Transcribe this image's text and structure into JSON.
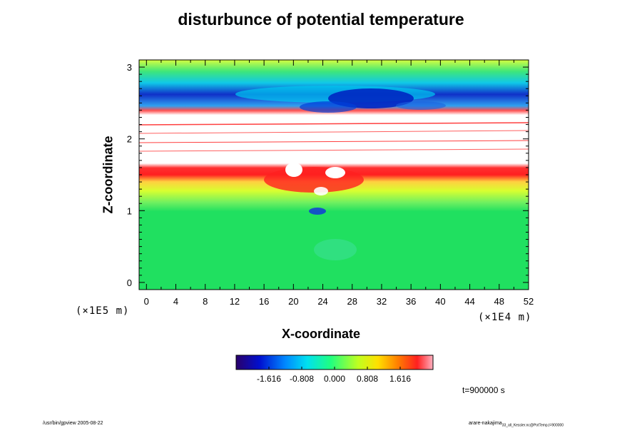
{
  "chart_data": {
    "type": "heatmap",
    "title": "disturbunce of potential temperature",
    "xlabel": "X-coordinate",
    "ylabel": "Z-coordinate",
    "x_unit": "(×1E4 m)",
    "y_unit": "(×1E5 m)",
    "xlim": [
      -1,
      52
    ],
    "ylim": [
      -0.1,
      3.1
    ],
    "x_ticks": [
      "0",
      "4",
      "8",
      "12",
      "16",
      "20",
      "24",
      "28",
      "32",
      "36",
      "40",
      "44",
      "48",
      "52"
    ],
    "y_ticks": [
      "0",
      "1",
      "2",
      "3"
    ],
    "colorbar": {
      "range": [
        -2.424,
        2.424
      ],
      "tick_labels": [
        "-1.616",
        "-0.808",
        "0.000",
        "0.808",
        "1.616"
      ]
    },
    "time_label": "t=900000 s",
    "field_bands": [
      {
        "z_range": [
          0.0,
          1.0
        ],
        "value": 0.0
      },
      {
        "z_range": [
          1.0,
          1.35
        ],
        "value": 0.5
      },
      {
        "z_range": [
          1.35,
          1.65
        ],
        "value": 1.7
      },
      {
        "z_range": [
          1.65,
          2.4
        ],
        "value": "out_of_range"
      },
      {
        "z_range": [
          2.4,
          2.75
        ],
        "value": -1.5
      },
      {
        "z_range": [
          2.75,
          3.05
        ],
        "value": 0.2
      }
    ]
  },
  "footer": {
    "left": "/usr/bin/gpview 2005-08-22",
    "right_main": "arare-nakajima",
    "right_sub": "33_all_Kessler.nc@PotTemp,t=900000"
  }
}
